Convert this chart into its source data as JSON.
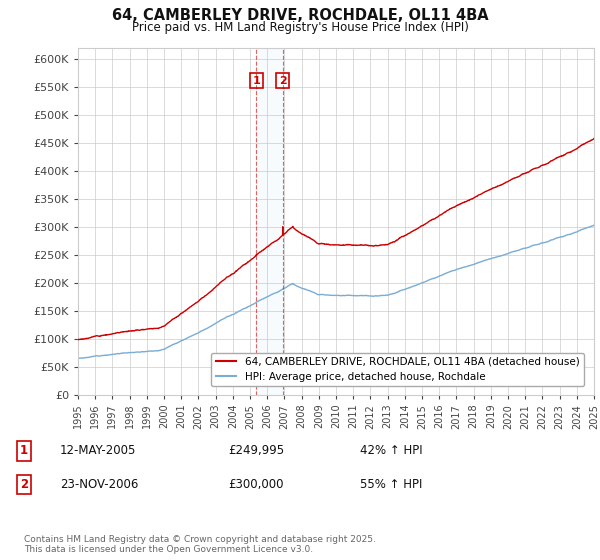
{
  "title": "64, CAMBERLEY DRIVE, ROCHDALE, OL11 4BA",
  "subtitle": "Price paid vs. HM Land Registry's House Price Index (HPI)",
  "ylim": [
    0,
    620000
  ],
  "yticks": [
    0,
    50000,
    100000,
    150000,
    200000,
    250000,
    300000,
    350000,
    400000,
    450000,
    500000,
    550000,
    600000
  ],
  "ytick_labels": [
    "£0",
    "£50K",
    "£100K",
    "£150K",
    "£200K",
    "£250K",
    "£300K",
    "£350K",
    "£400K",
    "£450K",
    "£500K",
    "£550K",
    "£600K"
  ],
  "x_start_year": 1995,
  "x_end_year": 2025,
  "transaction1_date": 2005.36,
  "transaction1_price": 249995,
  "transaction1_label": "1",
  "transaction2_date": 2006.9,
  "transaction2_price": 300000,
  "transaction2_label": "2",
  "red_line_color": "#cc0000",
  "blue_line_color": "#7aadd4",
  "legend_label_red": "64, CAMBERLEY DRIVE, ROCHDALE, OL11 4BA (detached house)",
  "legend_label_blue": "HPI: Average price, detached house, Rochdale",
  "annotation1_date": "12-MAY-2005",
  "annotation1_price": "£249,995",
  "annotation1_hpi": "42% ↑ HPI",
  "annotation2_date": "23-NOV-2006",
  "annotation2_price": "£300,000",
  "annotation2_hpi": "55% ↑ HPI",
  "footer": "Contains HM Land Registry data © Crown copyright and database right 2025.\nThis data is licensed under the Open Government Licence v3.0.",
  "background_color": "#ffffff",
  "grid_color": "#cccccc"
}
